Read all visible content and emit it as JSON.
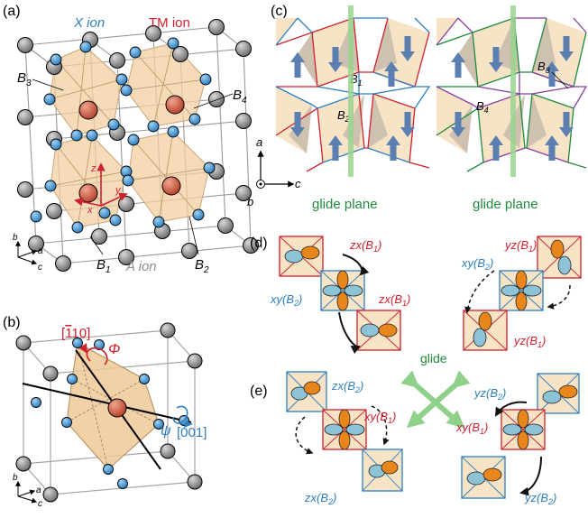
{
  "panels": {
    "a": {
      "label": "(a)",
      "x_ion": "X ion",
      "tm_ion": "TM ion",
      "a_ion": "A ion",
      "b1": "B",
      "b1_sub": "1",
      "b2": "B",
      "b2_sub": "2",
      "b3": "B",
      "b3_sub": "3",
      "b4": "B",
      "b4_sub": "4",
      "axis_z": "z",
      "axis_y": "y",
      "axis_x": "x",
      "frame_b": "b",
      "frame_a": "a",
      "frame_c": "c"
    },
    "b": {
      "label": "(b)",
      "dir_110": "[̅1   10]",
      "dir_110_display": "[1̅10]",
      "phi": "Φ",
      "psi": "ψ",
      "dir_001": "[001]",
      "frame_b": "b",
      "frame_a": "a",
      "frame_c": "c"
    },
    "c": {
      "label": "(c)",
      "axis_a": "a",
      "axis_b": "b",
      "axis_c": "c",
      "glide_left": "glide plane",
      "glide_right": "glide plane",
      "b1": "B",
      "b1_sub": "1",
      "b2": "B",
      "b2_sub": "2",
      "b3": "B",
      "b3_sub": "3",
      "b4": "B",
      "b4_sub": "4"
    },
    "d": {
      "label": "(d)",
      "zx_b1_top": "zx(B",
      "sub1": "1",
      "xy_b2_left": "xy(B",
      "sub2": "2",
      "zx_b1_bottom": "zx(B",
      "yz_b1_top": "yz(B",
      "xy_b2_right": "xy(B",
      "yz_b1_bottom": "yz(B"
    },
    "e": {
      "label": "(e)",
      "zx_b2_top": "zx(B",
      "xy_b1_left": "xy(B",
      "zx_b2_bottom": "zx(B",
      "yz_b2_top": "yz(B",
      "xy_b1_right": "xy(B",
      "yz_b2_bottom": "yz(B"
    },
    "glide": "glide"
  },
  "colors": {
    "blue": "#2f7fbf",
    "red": "#d0202e",
    "green": "#1f8a3a",
    "glide_green": "#8fd18a",
    "octa_fill": "#f3d9b5",
    "gray_atom": "#8e8e8e",
    "tm_atom": "#c8614a",
    "orbital_orange": "#e8851b",
    "orbital_blue": "#8cc3d6",
    "purple": "#8a3ea0"
  }
}
